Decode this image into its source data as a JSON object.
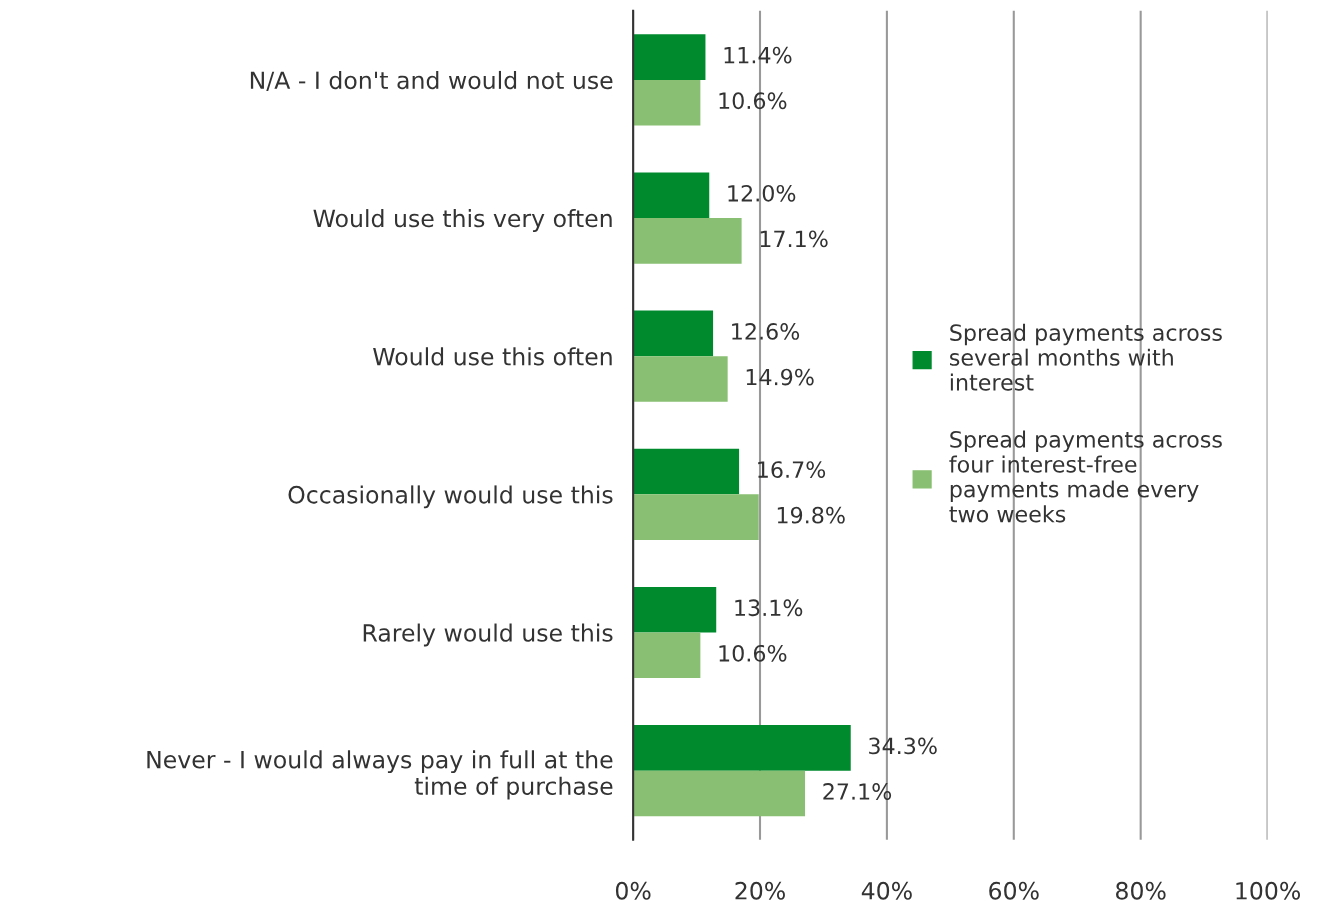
{
  "chart_data": {
    "type": "bar",
    "orientation": "horizontal",
    "categories": [
      "N/A - I don't and would not use",
      "Would use this very often",
      "Would use this often",
      "Occasionally would use this",
      "Rarely would use this",
      "Never - I would always pay in full at the\ntime of purchase"
    ],
    "series": [
      {
        "name": "Spread payments across\nseveral months with\ninterest",
        "color": "#008a2e",
        "values": [
          11.4,
          12.0,
          12.6,
          16.7,
          13.1,
          34.3
        ],
        "value_labels": [
          "11.4%",
          "12.0%",
          "12.6%",
          "16.7%",
          "13.1%",
          "34.3%"
        ]
      },
      {
        "name": "Spread payments across\nfour interest-free\npayments made every\ntwo weeks",
        "color": "#88bf72",
        "values": [
          10.6,
          17.1,
          14.9,
          19.8,
          10.6,
          27.1
        ],
        "value_labels": [
          "10.6%",
          "17.1%",
          "14.9%",
          "19.8%",
          "10.6%",
          "27.1%"
        ]
      }
    ],
    "xlim": [
      0,
      100
    ],
    "xticks": [
      {
        "value": 0,
        "label": "0%"
      },
      {
        "value": 20,
        "label": "20%"
      },
      {
        "value": 40,
        "label": "40%"
      },
      {
        "value": 60,
        "label": "60%"
      },
      {
        "value": 80,
        "label": "80%"
      },
      {
        "value": 100,
        "label": "100%"
      }
    ],
    "grid": "x",
    "legend": "right"
  }
}
